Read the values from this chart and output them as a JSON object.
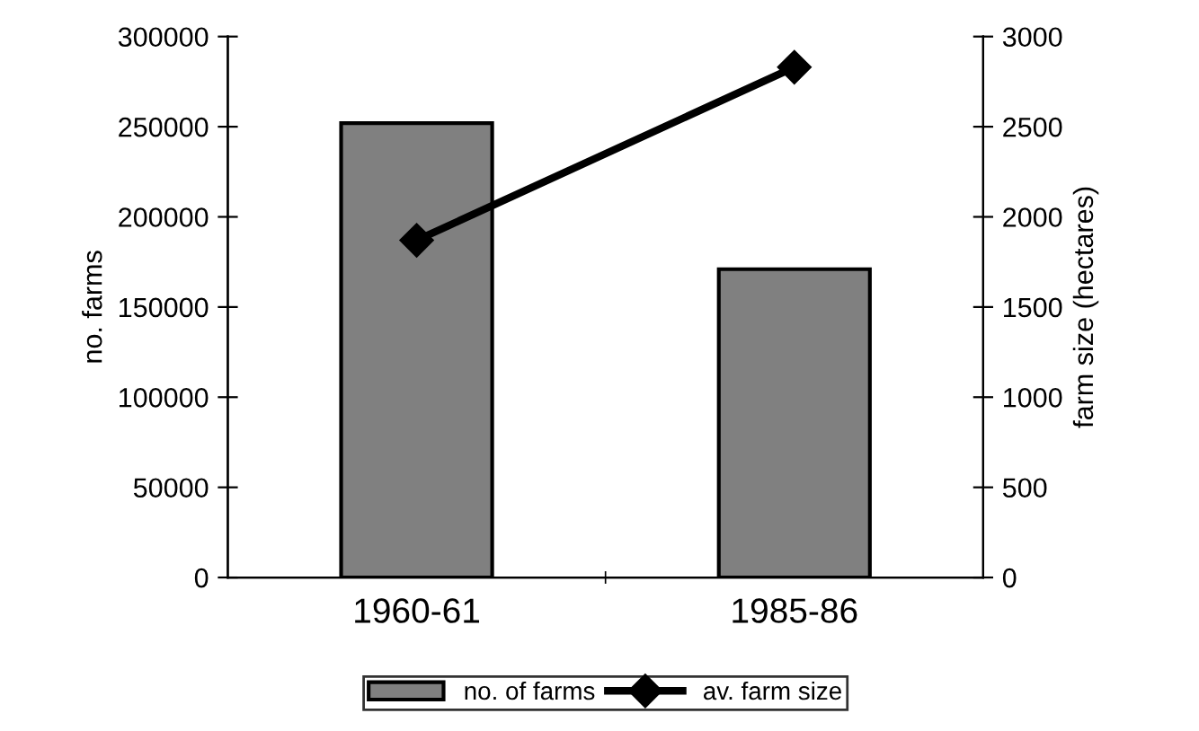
{
  "chart_data": {
    "type": "bar",
    "ylabel": "no. farms",
    "y2label": "farm size (hectares)",
    "categories": [
      "1960-61",
      "1985-86"
    ],
    "series": [
      {
        "name": "no. of farms",
        "color": "#808080",
        "values": [
          252000,
          171000
        ]
      },
      {
        "name": "av. farm size",
        "type": "line",
        "axis": "y2",
        "color": "#000000",
        "marker": "diamond",
        "values": [
          1870,
          2830
        ]
      }
    ],
    "ylim": [
      0,
      300000
    ],
    "yticks": [
      0,
      50000,
      100000,
      150000,
      200000,
      250000,
      300000
    ],
    "y2lim": [
      0,
      3000
    ],
    "y2ticks": [
      0,
      500,
      1000,
      1500,
      2000,
      2500,
      3000
    ],
    "grid": false,
    "legend": "bottom"
  }
}
